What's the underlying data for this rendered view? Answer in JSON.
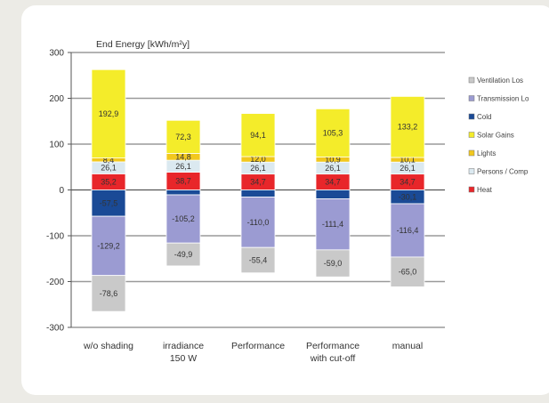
{
  "chart_data": {
    "type": "bar",
    "stacked": true,
    "title": "End Energy [kWh/m²y]",
    "ylim": [
      -300,
      300
    ],
    "yticks": [
      -300,
      -200,
      -100,
      0,
      100,
      200,
      300
    ],
    "categories": [
      "w/o shading",
      "irradiance\n150 W",
      "Performance",
      "Performance\nwith cut-off",
      "manual"
    ],
    "positive_series": [
      {
        "name": "Heat",
        "color": "#e8262a",
        "values": [
          35.2,
          38.7,
          34.7,
          34.7,
          34.7
        ],
        "labels": [
          "35,2",
          "38,7",
          "34,7",
          "34,7",
          "34,7"
        ]
      },
      {
        "name": "Persons / Comp",
        "color": "#dbe9f0",
        "values": [
          26.1,
          26.1,
          26.1,
          26.1,
          26.1
        ],
        "labels": [
          "26,1",
          "26,1",
          "26,1",
          "26,1",
          "26,1"
        ]
      },
      {
        "name": "Lights",
        "color": "#f2c81e",
        "values": [
          8.4,
          14.8,
          12.0,
          10.9,
          10.1
        ],
        "labels": [
          "8,4",
          "14,8",
          "12,0",
          "10,9",
          "10,1"
        ]
      },
      {
        "name": "Solar Gains",
        "color": "#f4ec2a",
        "values": [
          192.9,
          72.3,
          94.1,
          105.3,
          133.2
        ],
        "labels": [
          "192,9",
          "72,3",
          "94,1",
          "105,3",
          "133,2"
        ]
      }
    ],
    "negative_series": [
      {
        "name": "Cold",
        "color": "#1a4a96",
        "values": [
          -57.5,
          -10.7,
          -15.6,
          -19.4,
          -30.1
        ],
        "labels": [
          "-57,5",
          "",
          "",
          "",
          "-30,1"
        ]
      },
      {
        "name": "Transmission Losses",
        "color": "#9b9bd2",
        "values": [
          -129.2,
          -105.2,
          -110.0,
          -111.4,
          -116.4
        ],
        "labels": [
          "-129,2",
          "-105,2",
          "-110,0",
          "-111,4",
          "-116,4"
        ]
      },
      {
        "name": "Ventilation Losses",
        "color": "#c9c9c9",
        "values": [
          -78.6,
          -49.9,
          -55.4,
          -59.0,
          -65.0
        ],
        "labels": [
          "-78,6",
          "-49,9",
          "-55,4",
          "-59,0",
          "-65,0"
        ]
      }
    ],
    "legend": [
      {
        "name": "Ventilation Los",
        "color": "#c9c9c9"
      },
      {
        "name": "Transmission Lo",
        "color": "#9b9bd2"
      },
      {
        "name": "Cold",
        "color": "#1a4a96"
      },
      {
        "name": "Solar Gains",
        "color": "#f4ec2a"
      },
      {
        "name": "Lights",
        "color": "#f2c81e"
      },
      {
        "name": "Persons / Comp",
        "color": "#dbe9f0"
      },
      {
        "name": "Heat",
        "color": "#e8262a"
      }
    ],
    "legend_position": "right"
  }
}
